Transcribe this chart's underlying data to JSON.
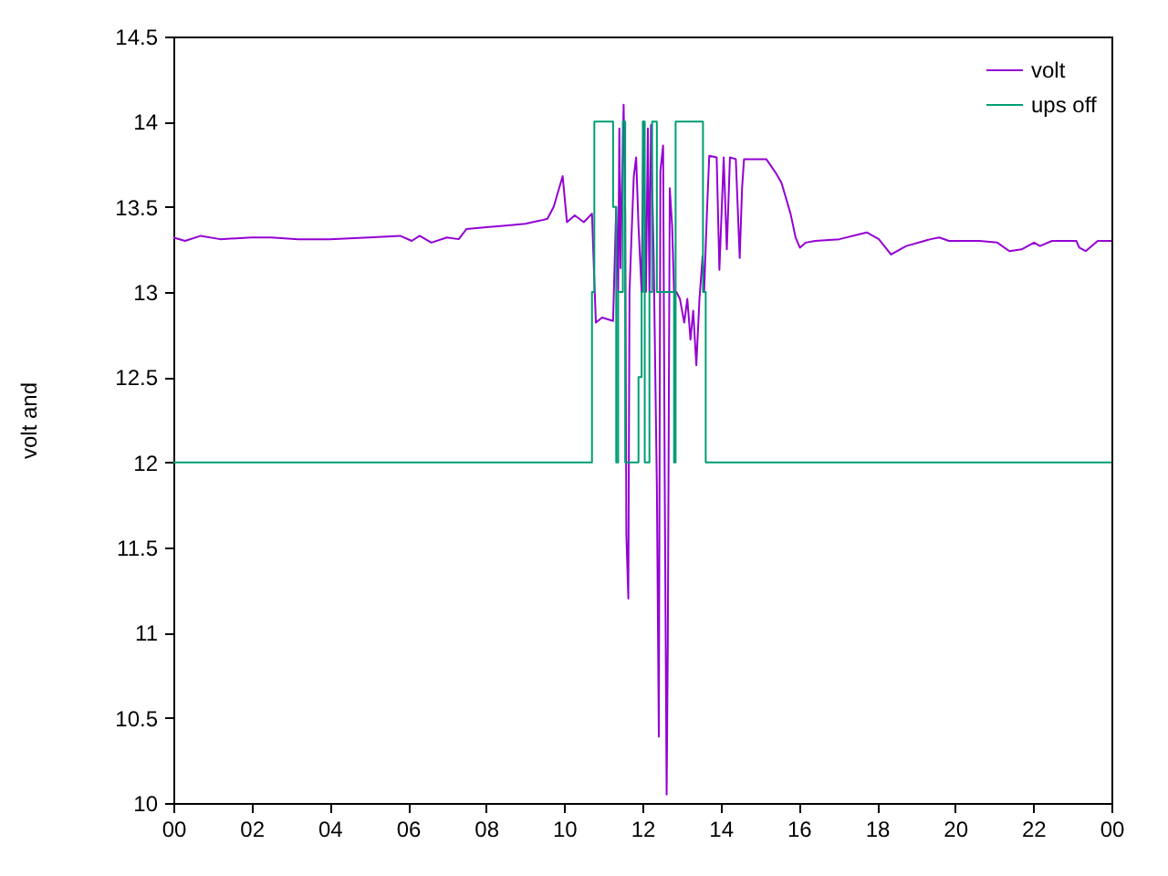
{
  "chart_data": {
    "type": "line",
    "ylabel": "volt and",
    "xlim": [
      0,
      24
    ],
    "ylim": [
      10,
      14.5
    ],
    "xticks": [
      {
        "value": 0,
        "label": "00"
      },
      {
        "value": 2,
        "label": "02"
      },
      {
        "value": 4,
        "label": "04"
      },
      {
        "value": 6,
        "label": "06"
      },
      {
        "value": 8,
        "label": "08"
      },
      {
        "value": 10,
        "label": "10"
      },
      {
        "value": 12,
        "label": "12"
      },
      {
        "value": 14,
        "label": "14"
      },
      {
        "value": 16,
        "label": "16"
      },
      {
        "value": 18,
        "label": "18"
      },
      {
        "value": 20,
        "label": "20"
      },
      {
        "value": 22,
        "label": "22"
      },
      {
        "value": 24,
        "label": "00"
      }
    ],
    "yticks": [
      10,
      10.5,
      11,
      11.5,
      12,
      12.5,
      13,
      13.5,
      14,
      14.5
    ],
    "grid": false,
    "legend": "top right",
    "marker": "none",
    "line_style": "solid",
    "series": [
      {
        "name": "volt",
        "color": "#9400d3",
        "x": [
          0,
          0.3,
          0.7,
          1.2,
          2.0,
          2.5,
          3.2,
          4.0,
          5.0,
          5.8,
          6.1,
          6.3,
          6.6,
          7.0,
          7.3,
          7.5,
          8.0,
          8.5,
          9.0,
          9.4,
          9.57,
          9.73,
          9.96,
          10.07,
          10.27,
          10.5,
          10.71,
          10.77,
          10.81,
          10.97,
          11.25,
          11.33,
          11.38,
          11.41,
          11.44,
          11.47,
          11.52,
          11.56,
          11.59,
          11.64,
          11.67,
          11.72,
          11.78,
          11.84,
          11.9,
          11.98,
          12.03,
          12.09,
          12.14,
          12.18,
          12.22,
          12.29,
          12.37,
          12.42,
          12.46,
          12.53,
          12.57,
          12.62,
          12.65,
          12.7,
          12.76,
          12.81,
          12.87,
          12.96,
          13.07,
          13.15,
          13.23,
          13.3,
          13.38,
          13.46,
          13.54,
          13.58,
          13.65,
          13.71,
          13.9,
          13.97,
          14.08,
          14.16,
          14.24,
          14.39,
          14.49,
          14.55,
          14.6,
          15.17,
          15.41,
          15.56,
          15.79,
          15.92,
          16.03,
          16.18,
          16.42,
          17.04,
          17.74,
          18.05,
          18.36,
          18.75,
          19.37,
          19.6,
          19.84,
          20.62,
          21.08,
          21.39,
          21.7,
          22.02,
          22.17,
          22.48,
          23.1,
          23.18,
          23.34,
          23.65,
          24
        ],
        "values": [
          13.32,
          13.3,
          13.33,
          13.31,
          13.32,
          13.32,
          13.31,
          13.31,
          13.32,
          13.33,
          13.3,
          13.33,
          13.29,
          13.32,
          13.31,
          13.37,
          13.38,
          13.39,
          13.4,
          13.42,
          13.43,
          13.5,
          13.68,
          13.41,
          13.45,
          13.41,
          13.46,
          13.07,
          12.82,
          12.85,
          12.83,
          13.5,
          13.0,
          13.96,
          13.14,
          13.54,
          14.1,
          13.46,
          11.57,
          11.2,
          13.0,
          13.32,
          13.68,
          13.79,
          13.39,
          13.0,
          14.0,
          13.0,
          13.96,
          13.0,
          13.98,
          13.18,
          11.86,
          10.39,
          13.71,
          13.86,
          11.93,
          10.05,
          10.93,
          13.61,
          13.39,
          13.0,
          13.0,
          12.96,
          12.82,
          12.96,
          12.72,
          12.89,
          12.57,
          12.96,
          13.21,
          13.0,
          13.46,
          13.8,
          13.79,
          13.13,
          13.79,
          13.25,
          13.79,
          13.78,
          13.2,
          13.61,
          13.78,
          13.78,
          13.7,
          13.64,
          13.46,
          13.32,
          13.26,
          13.29,
          13.3,
          13.31,
          13.35,
          13.31,
          13.22,
          13.27,
          13.31,
          13.32,
          13.3,
          13.3,
          13.29,
          13.24,
          13.25,
          13.29,
          13.27,
          13.3,
          13.3,
          13.26,
          13.24,
          13.3,
          13.3
        ]
      },
      {
        "name": "ups off",
        "color": "#009e73",
        "x": [
          0,
          10.71,
          10.71,
          10.77,
          10.77,
          11.25,
          11.25,
          11.33,
          11.33,
          11.38,
          11.38,
          11.5,
          11.5,
          11.56,
          11.56,
          11.9,
          11.9,
          11.98,
          11.98,
          12.01,
          12.01,
          12.06,
          12.06,
          12.18,
          12.18,
          12.25,
          12.25,
          12.37,
          12.37,
          12.81,
          12.81,
          12.85,
          12.85,
          13.55,
          13.55,
          13.62,
          13.62,
          24
        ],
        "values": [
          12,
          12,
          13,
          13,
          14,
          14,
          13.5,
          13.5,
          12,
          12,
          13,
          13,
          14,
          14,
          12,
          12,
          12.5,
          12.5,
          13,
          13,
          14,
          14,
          12,
          12,
          13,
          13,
          14,
          14,
          13,
          13,
          12,
          12,
          14,
          14,
          13,
          13,
          12,
          12
        ]
      }
    ]
  }
}
